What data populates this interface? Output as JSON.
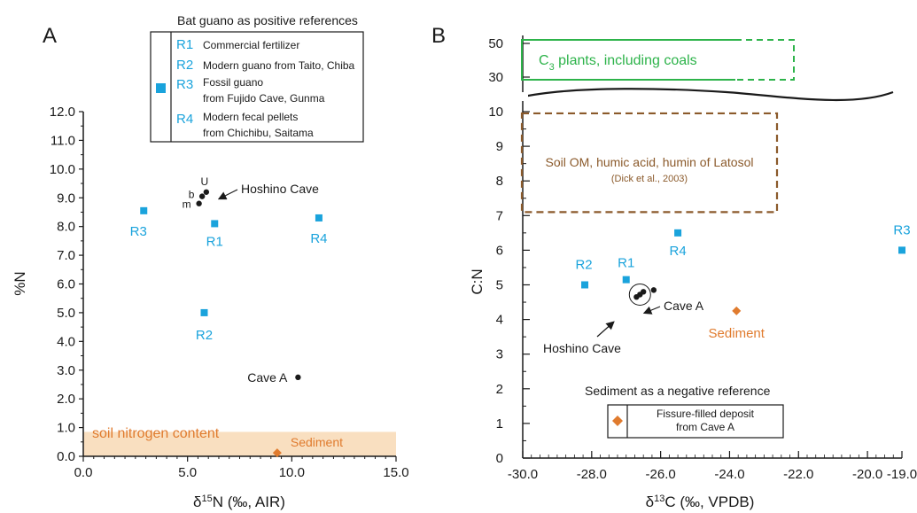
{
  "chart_data": [
    {
      "type": "scatter",
      "panel_label": "A",
      "xlabel": "δ15N (‰, AIR)",
      "ylabel": "%N",
      "xlim": [
        0,
        15
      ],
      "ylim": [
        0,
        12
      ],
      "x_ticks": [
        "0.0",
        "5.0",
        "10.0",
        "15.0"
      ],
      "y_ticks": [
        "0.0",
        "1.0",
        "2.0",
        "3.0",
        "4.0",
        "5.0",
        "6.0",
        "7.0",
        "8.0",
        "9.0",
        "10.0",
        "11.0",
        "12.0"
      ],
      "legend": {
        "title": "Bat guano as positive references",
        "items": [
          {
            "code": "R1",
            "lines": [
              "Commercial fertilizer"
            ]
          },
          {
            "code": "R2",
            "lines": [
              "Modern guano from Taito, Chiba"
            ]
          },
          {
            "code": "R3",
            "lines": [
              "Fossil guano",
              "from Fujido Cave, Gunma"
            ]
          },
          {
            "code": "R4",
            "lines": [
              "Modern fecal pellets",
              "from Chichibu, Saitama"
            ]
          }
        ]
      },
      "series": [
        {
          "name": "Bat guano as positive references",
          "marker": "square",
          "color": "#1aa3dc",
          "points": [
            {
              "label": "R1",
              "x": 6.3,
              "y": 8.1
            },
            {
              "label": "R2",
              "x": 5.8,
              "y": 5.0
            },
            {
              "label": "R3",
              "x": 2.9,
              "y": 8.55
            },
            {
              "label": "R4",
              "x": 11.3,
              "y": 8.3
            }
          ]
        },
        {
          "name": "Hoshino Cave",
          "marker": "circle",
          "color": "#1a1a1a",
          "points": [
            {
              "label": "U",
              "x": 5.9,
              "y": 9.2
            },
            {
              "label": "b",
              "x": 5.7,
              "y": 9.05
            },
            {
              "label": "m",
              "x": 5.55,
              "y": 8.8
            }
          ]
        },
        {
          "name": "Cave A",
          "marker": "circle",
          "color": "#1a1a1a",
          "points": [
            {
              "label": "Cave A",
              "x": 10.3,
              "y": 2.75
            }
          ]
        },
        {
          "name": "Sediment",
          "marker": "diamond",
          "color": "#e07b2e",
          "points": [
            {
              "label": "Sediment",
              "x": 9.3,
              "y": 0.12
            }
          ]
        }
      ],
      "annotations": {
        "hoshino": "Hoshino Cave",
        "soil_band": "soil nitrogen content"
      },
      "soil_band": {
        "ymin": 0.0,
        "ymax": 0.85,
        "color": "#f9dfc0"
      }
    },
    {
      "type": "scatter",
      "panel_label": "B",
      "xlabel": "δ13C (‰, VPDB)",
      "ylabel": "C:N",
      "xlim": [
        -30,
        -19
      ],
      "ylim": [
        0,
        10
      ],
      "x_ticks": [
        "-30.0",
        "-28.0",
        "-26.0",
        "-24.0",
        "-22.0",
        "-20.0",
        "-19.0"
      ],
      "y_ticks": [
        "0",
        "1",
        "2",
        "3",
        "4",
        "5",
        "6",
        "7",
        "8",
        "9",
        "10"
      ],
      "upper_ticks": [
        "30",
        "50"
      ],
      "c3_box": {
        "text": "C3 plants, including coals",
        "color": "#2db34a"
      },
      "soil_box": {
        "text": "Soil OM, humic acid, humin of Latosol",
        "citation": "(Dick et al., 2003)",
        "color": "#8b5a2b",
        "ymin": 7.1,
        "ymax": 9.95
      },
      "legend": {
        "title": "Sediment as a negative reference",
        "lines": [
          "Fissure-filled deposit",
          "from Cave A"
        ]
      },
      "series": [
        {
          "name": "Bat guano as positive references",
          "marker": "square",
          "color": "#1aa3dc",
          "points": [
            {
              "label": "R1",
              "x": -27.0,
              "y": 5.15
            },
            {
              "label": "R2",
              "x": -28.2,
              "y": 5.0
            },
            {
              "label": "R3",
              "x": -19.0,
              "y": 6.0
            },
            {
              "label": "R4",
              "x": -25.5,
              "y": 6.5
            }
          ]
        },
        {
          "name": "Hoshino Cave",
          "marker": "circle",
          "color": "#1a1a1a",
          "points": [
            {
              "x": -26.7,
              "y": 4.65
            },
            {
              "x": -26.6,
              "y": 4.72
            },
            {
              "x": -26.5,
              "y": 4.8
            }
          ]
        },
        {
          "name": "Cave A",
          "marker": "circle",
          "color": "#1a1a1a",
          "points": [
            {
              "x": -26.2,
              "y": 4.85
            }
          ]
        },
        {
          "name": "Sediment",
          "marker": "diamond",
          "color": "#e07b2e",
          "points": [
            {
              "label": "Sediment",
              "x": -23.8,
              "y": 4.25
            }
          ]
        }
      ],
      "annotations": {
        "hoshino": "Hoshino Cave",
        "cave_a": "Cave A"
      }
    }
  ]
}
